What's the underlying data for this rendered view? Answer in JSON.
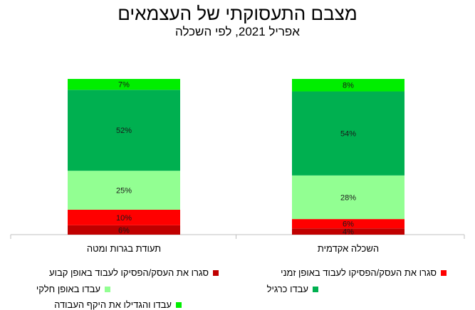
{
  "title": "מצבם התעסוקתי של העצמאים",
  "subtitle": "אפריל 2021, לפי השכלה",
  "chart_data": {
    "type": "bar",
    "stacked": true,
    "percent": true,
    "categories": [
      "תעודת בגרות ומטה",
      "השכלה אקדמית"
    ],
    "series": [
      {
        "name": "סגרו את העסק/הפסיקו לעבוד באופן קבוע",
        "color": "#c00000",
        "values": [
          6,
          4
        ],
        "labels": [
          "6%",
          "4%"
        ]
      },
      {
        "name": "סגרו את העסק/הפסיקו לעבוד באופן זמני",
        "color": "#ff0000",
        "values": [
          10,
          6
        ],
        "labels": [
          "10%",
          "6%"
        ]
      },
      {
        "name": "עבדו באופן חלקי",
        "color": "#92ff92",
        "values": [
          25,
          28
        ],
        "labels": [
          "25%",
          "28%"
        ]
      },
      {
        "name": "עבדו כרגיל",
        "color": "#00b050",
        "values": [
          52,
          54
        ],
        "labels": [
          "52%",
          "54%"
        ]
      },
      {
        "name": "עבדו והגדילו את היקף העבודה",
        "color": "#00ee00",
        "values": [
          7,
          8
        ],
        "labels": [
          "7%",
          "8%"
        ]
      }
    ],
    "grid": false,
    "legend_position": "bottom"
  }
}
